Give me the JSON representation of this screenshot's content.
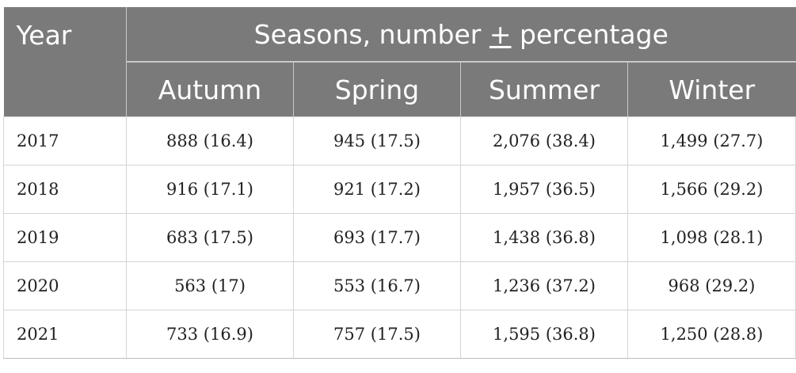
{
  "table": {
    "year_header": "Year",
    "group_header_prefix": "Seasons, number ",
    "group_header_pm": "+",
    "group_header_suffix": " percentage",
    "seasons": [
      "Autumn",
      "Spring",
      "Summer",
      "Winter"
    ],
    "rows": [
      {
        "year": "2017",
        "cells": [
          "888 (16.4)",
          "945 (17.5)",
          "2,076 (38.4)",
          "1,499 (27.7)"
        ]
      },
      {
        "year": "2018",
        "cells": [
          "916 (17.1)",
          "921 (17.2)",
          "1,957 (36.5)",
          "1,566 (29.2)"
        ]
      },
      {
        "year": "2019",
        "cells": [
          "683 (17.5)",
          "693 (17.7)",
          "1,438 (36.8)",
          "1,098 (28.1)"
        ]
      },
      {
        "year": "2020",
        "cells": [
          "563 (17)",
          "553 (16.7)",
          "1,236 (37.2)",
          "968 (29.2)"
        ]
      },
      {
        "year": "2021",
        "cells": [
          "733 (16.9)",
          "757 (17.5)",
          "1,595 (36.8)",
          "1,250 (28.8)"
        ]
      }
    ]
  }
}
